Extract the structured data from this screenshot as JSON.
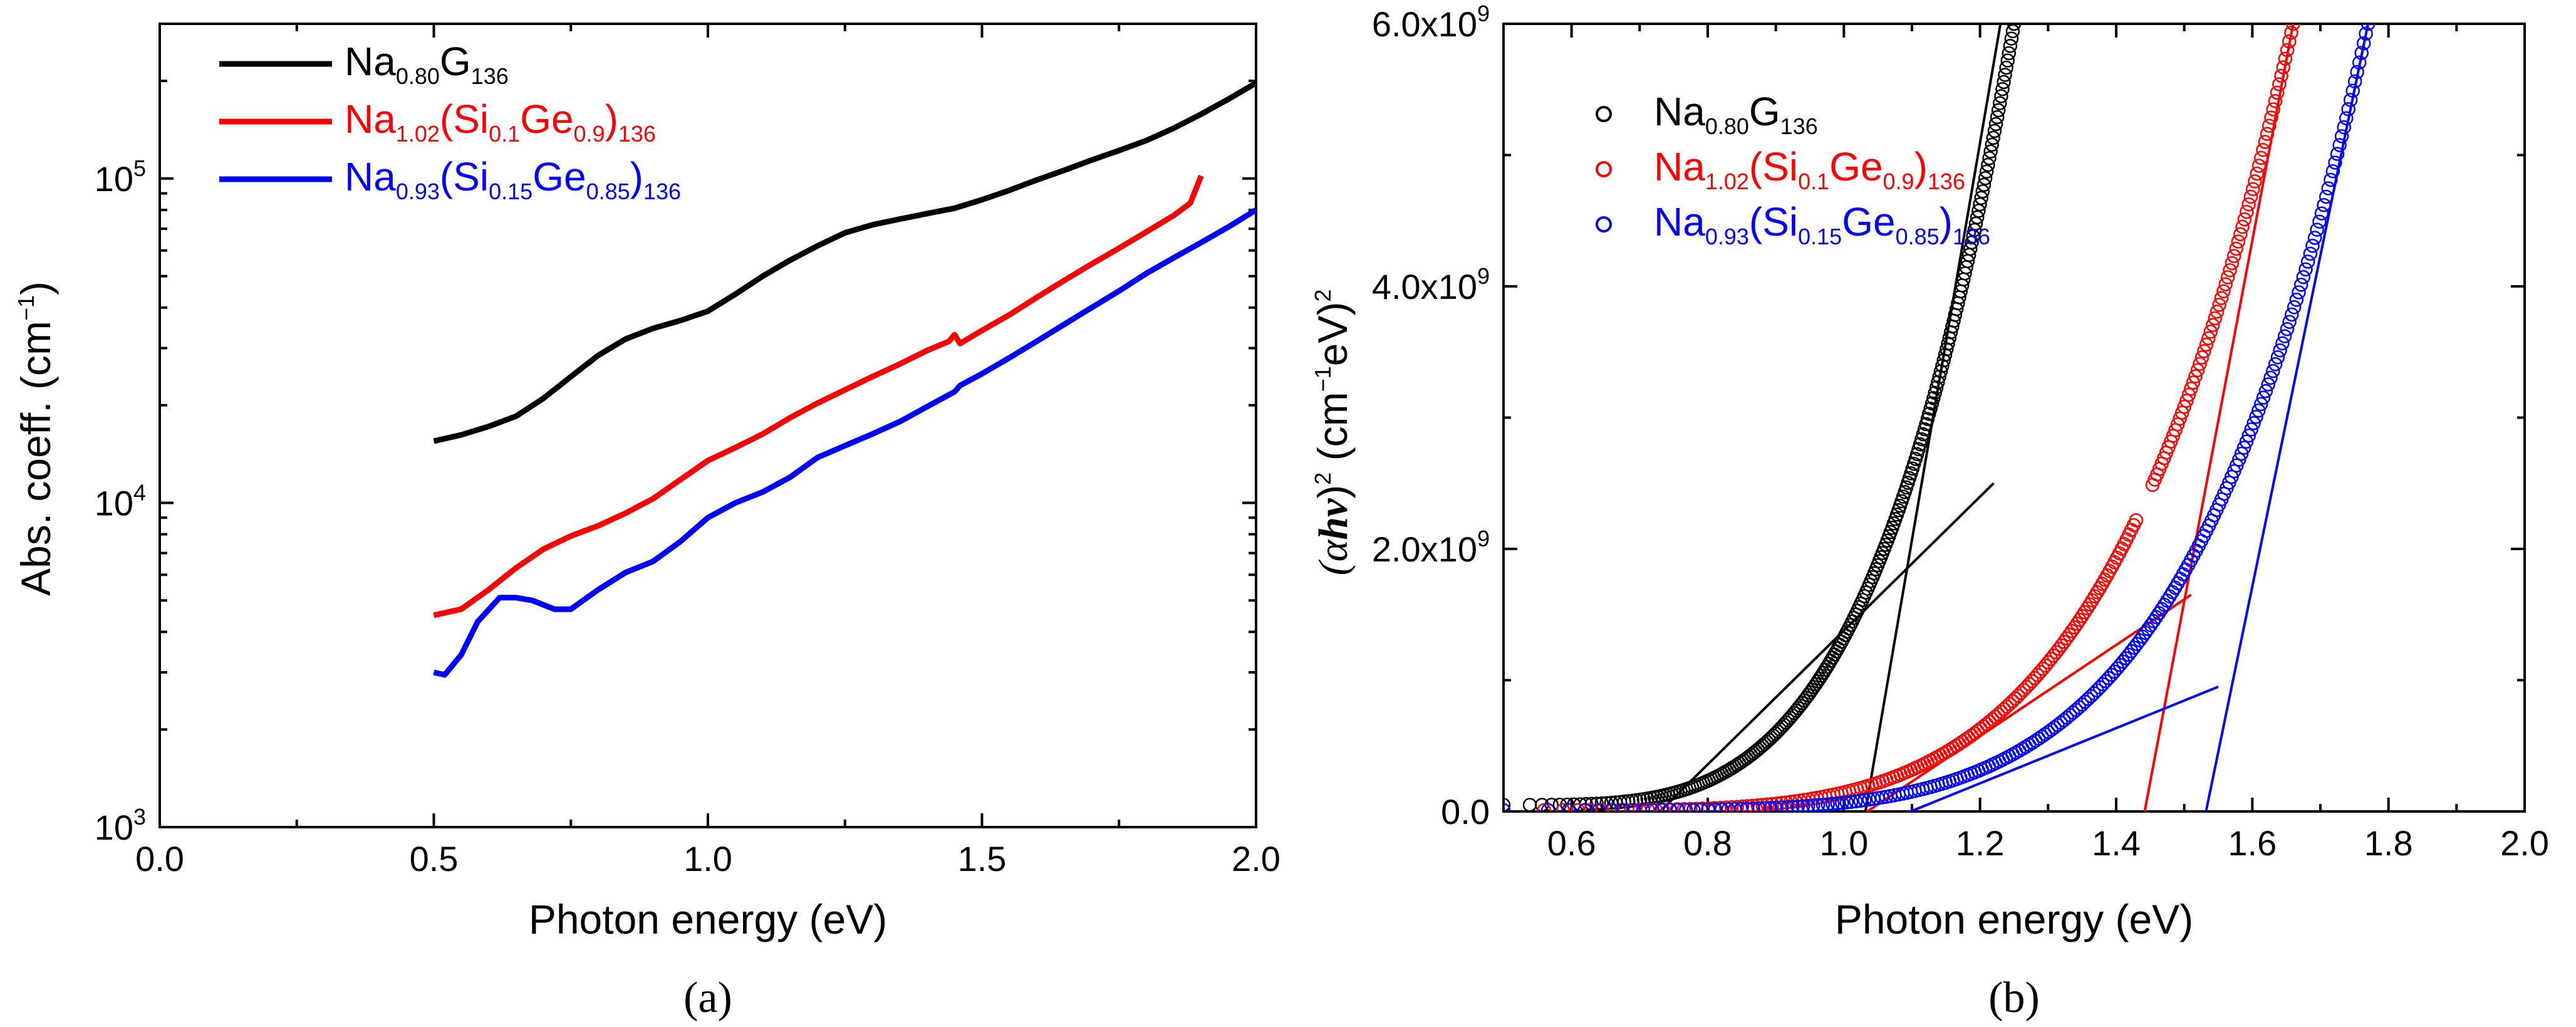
{
  "colors": {
    "black": "#000000",
    "red": "#ff0000",
    "blue": "#0000ff",
    "purple": "#8000c0"
  },
  "chart_data": [
    {
      "type": "line",
      "panel_label": "(a)",
      "xlabel": "Photon energy (eV)",
      "ylabel": "Abs. coeff. (cm−1)",
      "ylabel_parts": {
        "main": "Abs. coeff. (cm",
        "sup": "−1",
        "tail": ")"
      },
      "xlim": [
        0.0,
        2.0
      ],
      "ylim": [
        1000,
        300000
      ],
      "y_scale": "log",
      "x_ticks": [
        "0.0",
        "0.5",
        "1.0",
        "1.5",
        "2.0"
      ],
      "y_ticks": [
        {
          "value": 1000,
          "base": "10",
          "exp": "3"
        },
        {
          "value": 10000,
          "base": "10",
          "exp": "4"
        },
        {
          "value": 100000,
          "base": "10",
          "exp": "5"
        }
      ],
      "legend_position": "top-left",
      "series": [
        {
          "name": "Na0.80G136",
          "name_parts": [
            [
              "Na",
              ""
            ],
            [
              "0.80",
              "sub"
            ],
            [
              "G",
              ""
            ],
            [
              "136",
              "sub"
            ]
          ],
          "color": "#000000",
          "points": [
            [
              0.5,
              15500
            ],
            [
              0.55,
              16200
            ],
            [
              0.6,
              17200
            ],
            [
              0.65,
              18500
            ],
            [
              0.7,
              21000
            ],
            [
              0.75,
              24500
            ],
            [
              0.8,
              28500
            ],
            [
              0.85,
              32000
            ],
            [
              0.9,
              34500
            ],
            [
              0.95,
              36500
            ],
            [
              1.0,
              39000
            ],
            [
              1.05,
              44000
            ],
            [
              1.1,
              50000
            ],
            [
              1.15,
              56000
            ],
            [
              1.2,
              62000
            ],
            [
              1.25,
              68000
            ],
            [
              1.3,
              72000
            ],
            [
              1.35,
              75000
            ],
            [
              1.4,
              78000
            ],
            [
              1.45,
              81000
            ],
            [
              1.5,
              86000
            ],
            [
              1.55,
              92000
            ],
            [
              1.6,
              99000
            ],
            [
              1.65,
              106000
            ],
            [
              1.7,
              114000
            ],
            [
              1.75,
              122000
            ],
            [
              1.8,
              131000
            ],
            [
              1.85,
              143000
            ],
            [
              1.9,
              158000
            ],
            [
              1.95,
              176000
            ],
            [
              2.0,
              197000
            ]
          ]
        },
        {
          "name": "Na1.02(Si0.1Ge0.9)136",
          "name_parts": [
            [
              "Na",
              ""
            ],
            [
              "1.02",
              "sub"
            ],
            [
              "(Si",
              ""
            ],
            [
              "0.1",
              "sub"
            ],
            [
              "Ge",
              ""
            ],
            [
              "0.9",
              "sub"
            ],
            [
              ")",
              ""
            ],
            [
              "136",
              "sub"
            ]
          ],
          "color": "#ff0000",
          "points": [
            [
              0.5,
              4500
            ],
            [
              0.55,
              4700
            ],
            [
              0.6,
              5400
            ],
            [
              0.65,
              6300
            ],
            [
              0.7,
              7200
            ],
            [
              0.75,
              7900
            ],
            [
              0.8,
              8500
            ],
            [
              0.85,
              9300
            ],
            [
              0.9,
              10300
            ],
            [
              0.95,
              11800
            ],
            [
              1.0,
              13500
            ],
            [
              1.05,
              14800
            ],
            [
              1.1,
              16300
            ],
            [
              1.15,
              18300
            ],
            [
              1.2,
              20300
            ],
            [
              1.25,
              22300
            ],
            [
              1.3,
              24500
            ],
            [
              1.35,
              26800
            ],
            [
              1.4,
              29500
            ],
            [
              1.44,
              31500
            ],
            [
              1.45,
              33000
            ],
            [
              1.46,
              31000
            ],
            [
              1.5,
              34000
            ],
            [
              1.55,
              38000
            ],
            [
              1.6,
              43000
            ],
            [
              1.65,
              48500
            ],
            [
              1.7,
              54500
            ],
            [
              1.75,
              61000
            ],
            [
              1.8,
              68500
            ],
            [
              1.85,
              77000
            ],
            [
              1.88,
              84000
            ],
            [
              1.9,
              102000
            ]
          ]
        },
        {
          "name": "Na0.93(Si0.15Ge0.85)136",
          "name_parts": [
            [
              "Na",
              ""
            ],
            [
              "0.93",
              "sub"
            ],
            [
              "(Si",
              ""
            ],
            [
              "0.15",
              "sub"
            ],
            [
              "Ge",
              ""
            ],
            [
              "0.85",
              "sub"
            ],
            [
              ")",
              ""
            ],
            [
              "136",
              "sub"
            ]
          ],
          "color": "#0000ff",
          "points": [
            [
              0.5,
              3000
            ],
            [
              0.52,
              2950
            ],
            [
              0.55,
              3400
            ],
            [
              0.58,
              4300
            ],
            [
              0.62,
              5100
            ],
            [
              0.65,
              5100
            ],
            [
              0.68,
              5000
            ],
            [
              0.72,
              4700
            ],
            [
              0.75,
              4700
            ],
            [
              0.8,
              5400
            ],
            [
              0.85,
              6100
            ],
            [
              0.9,
              6600
            ],
            [
              0.95,
              7600
            ],
            [
              1.0,
              9000
            ],
            [
              1.05,
              10000
            ],
            [
              1.1,
              10800
            ],
            [
              1.15,
              12000
            ],
            [
              1.2,
              13800
            ],
            [
              1.25,
              15000
            ],
            [
              1.3,
              16300
            ],
            [
              1.35,
              17800
            ],
            [
              1.4,
              19800
            ],
            [
              1.45,
              22000
            ],
            [
              1.46,
              23000
            ],
            [
              1.5,
              25000
            ],
            [
              1.55,
              28000
            ],
            [
              1.6,
              31500
            ],
            [
              1.65,
              35500
            ],
            [
              1.7,
              40000
            ],
            [
              1.75,
              45000
            ],
            [
              1.8,
              51000
            ],
            [
              1.85,
              57000
            ],
            [
              1.9,
              63500
            ],
            [
              1.95,
              71000
            ],
            [
              2.0,
              80000
            ]
          ]
        }
      ]
    },
    {
      "type": "scatter",
      "panel_label": "(b)",
      "xlabel": "Photon energy (eV)",
      "ylabel": "(αhν)2 (cm−1eV)2",
      "ylabel_parts": {
        "a": "(α",
        "hv": "hν",
        "b": ")",
        "sup1": "2",
        "c": " (cm",
        "sup2": "−1",
        "d": "eV)",
        "sup3": "2"
      },
      "xlim": [
        0.5,
        2.0
      ],
      "ylim": [
        0,
        6000000000.0
      ],
      "x_ticks": [
        "0.6",
        "0.8",
        "1.0",
        "1.2",
        "1.4",
        "1.6",
        "1.8",
        "2.0"
      ],
      "y_ticks": [
        {
          "value": 0,
          "label": "0.0"
        },
        {
          "value": 2000000000.0,
          "label": "2.0x10",
          "exp": "9"
        },
        {
          "value": 4000000000.0,
          "label": "4.0x10",
          "exp": "9"
        },
        {
          "value": 6000000000.0,
          "label": "6.0x10",
          "exp": "9"
        }
      ],
      "legend_position": "top-left",
      "series": [
        {
          "name": "Na0.80G136",
          "name_parts": [
            [
              "Na",
              ""
            ],
            [
              "0.80",
              "sub"
            ],
            [
              "G",
              ""
            ],
            [
              "136",
              "sub"
            ]
          ],
          "color": "#000000",
          "x_range": [
            0.5,
            1.25
          ],
          "y_at_start": 50000000.0,
          "y_at_end": 6000000000.0,
          "shape": 3.8,
          "fit_lines": [
            {
              "x": [
                0.72,
                1.22
              ],
              "y": [
                -50000000.0,
                2500000000.0
              ]
            },
            {
              "x": [
                1.03,
                1.23
              ],
              "y": [
                -50000000.0,
                6000000000.0
              ]
            }
          ]
        },
        {
          "name": "Na1.02(Si0.1Ge0.9)136",
          "name_parts": [
            [
              "Na",
              ""
            ],
            [
              "1.02",
              "sub"
            ],
            [
              "(Si",
              ""
            ],
            [
              "0.1",
              "sub"
            ],
            [
              "Ge",
              ""
            ],
            [
              "0.9",
              "sub"
            ],
            [
              ")",
              ""
            ],
            [
              "136",
              "sub"
            ]
          ],
          "color": "#ff0000",
          "x_range": [
            0.5,
            1.66
          ],
          "y_at_start": 10000000.0,
          "y_at_end": 6000000000.0,
          "shape": 4.5,
          "gap": [
            1.43,
            1.45
          ],
          "fit_lines": [
            {
              "x": [
                1.02,
                1.51
              ],
              "y": [
                -50000000.0,
                1650000000.0
              ]
            },
            {
              "x": [
                1.44,
                1.66
              ],
              "y": [
                -50000000.0,
                6000000000.0
              ]
            }
          ]
        },
        {
          "name": "Na0.93(Si0.15Ge0.85)136",
          "name_parts": [
            [
              "Na",
              ""
            ],
            [
              "0.93",
              "sub"
            ],
            [
              "(Si",
              ""
            ],
            [
              "0.15",
              "sub"
            ],
            [
              "Ge",
              ""
            ],
            [
              "0.85",
              "sub"
            ],
            [
              ")",
              ""
            ],
            [
              "136",
              "sub"
            ]
          ],
          "color": "#0000ff",
          "x_range": [
            0.5,
            1.77
          ],
          "y_at_start": 10000000.0,
          "y_at_end": 6000000000.0,
          "shape": 5.0,
          "fit_lines": [
            {
              "x": [
                1.06,
                1.55
              ],
              "y": [
                -80000000.0,
                950000000.0
              ]
            },
            {
              "x": [
                1.53,
                1.77
              ],
              "y": [
                -50000000.0,
                6000000000.0
              ]
            }
          ]
        }
      ]
    }
  ]
}
